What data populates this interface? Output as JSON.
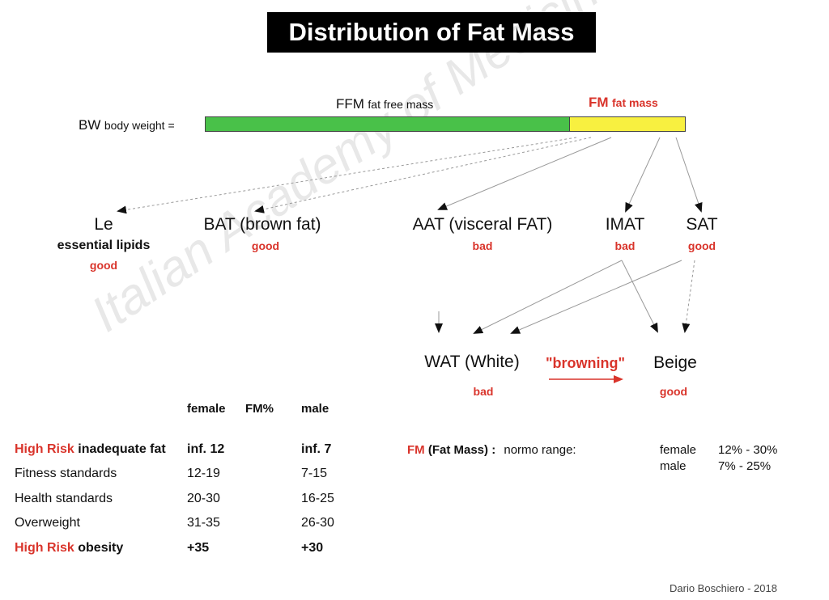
{
  "title": "Distribution of Fat Mass",
  "watermark": "Italian Academy of Medicine",
  "bar": {
    "bw_abbr": "BW",
    "bw_full": "body weight =",
    "ffm_abbr": "FFM",
    "ffm_full": "fat free mass",
    "fm_abbr": "FM",
    "fm_full": "fat mass",
    "ffm_fraction": 0.76,
    "ffm_color": "#49c149",
    "fm_color": "#f8f040"
  },
  "compartments": [
    {
      "name": "Le",
      "desc": "essential lipids",
      "rating": "good"
    },
    {
      "name": "BAT (brown fat)",
      "rating": "good"
    },
    {
      "name": "AAT (visceral FAT)",
      "rating": "bad"
    },
    {
      "name": "IMAT",
      "rating": "bad"
    },
    {
      "name": "SAT",
      "rating": "good"
    }
  ],
  "adipocytes": {
    "wat": {
      "name": "WAT (White)",
      "rating": "bad"
    },
    "browning": "\"browning\"",
    "beige": {
      "name": "Beige",
      "rating": "good"
    }
  },
  "table": {
    "headers": [
      "female",
      "FM%",
      "male"
    ],
    "rows": [
      {
        "risk": "High Risk",
        "label": "inadequate fat",
        "female": "inf. 12",
        "male": "inf. 7",
        "bold": true
      },
      {
        "risk": "",
        "label": "Fitness standards",
        "female": "12-19",
        "male": "7-15",
        "bold": false
      },
      {
        "risk": "",
        "label": "Health standards",
        "female": "20-30",
        "male": "16-25",
        "bold": false
      },
      {
        "risk": "",
        "label": "Overweight",
        "female": "31-35",
        "male": "26-30",
        "bold": false
      },
      {
        "risk": "High Risk",
        "label": "obesity",
        "female": "+35",
        "male": "+30",
        "bold": true
      }
    ]
  },
  "normo": {
    "fm": "FM",
    "fm_full": "(Fat Mass) :",
    "label": "normo range:",
    "female_label": "female",
    "female_range": "12% - 30%",
    "male_label": "male",
    "male_range": "7% - 25%"
  },
  "credit": "Dario Boschiero - 2018",
  "colors": {
    "accent_red": "#d9342b",
    "title_bg": "#000000"
  }
}
